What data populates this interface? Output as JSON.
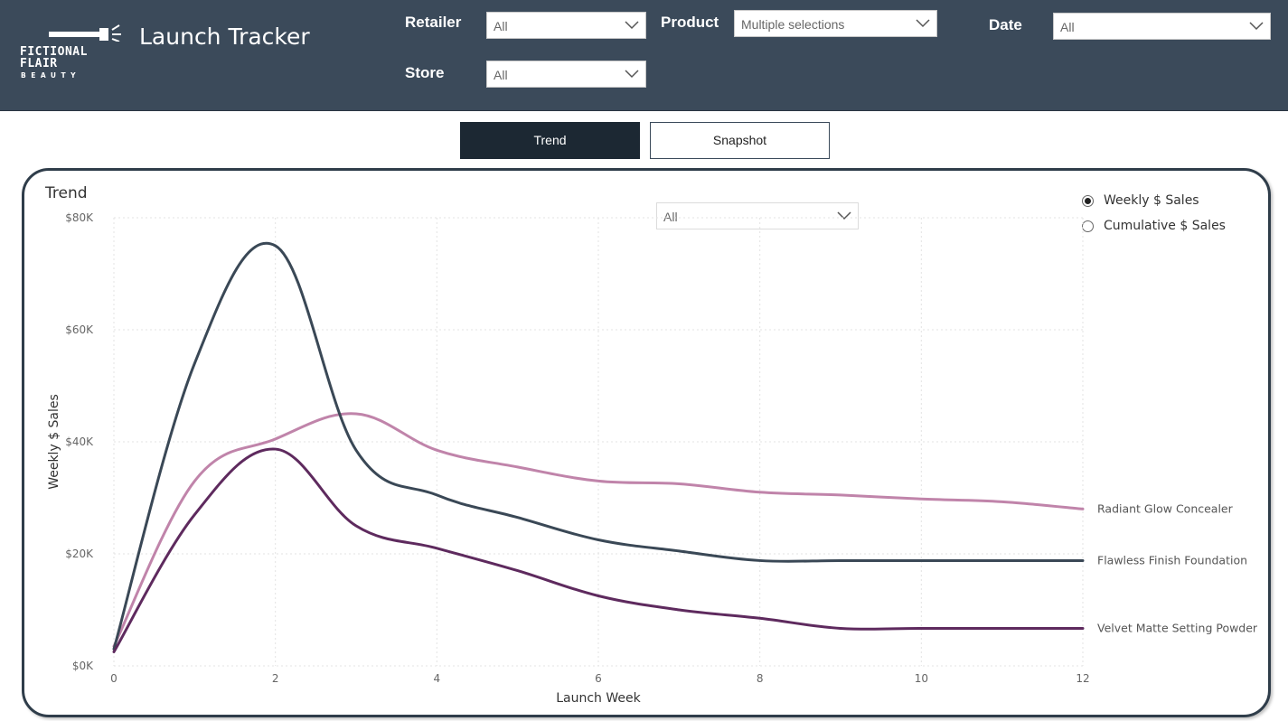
{
  "brand": {
    "line1": "FICTIONAL",
    "line2": "FLAIR",
    "line3": "BEAUTY"
  },
  "header": {
    "title": "Launch Tracker"
  },
  "filters": {
    "retailer": {
      "label": "Retailer",
      "value": "All"
    },
    "product": {
      "label": "Product",
      "value": "Multiple selections"
    },
    "date": {
      "label": "Date",
      "value": "All"
    },
    "store": {
      "label": "Store",
      "value": "All"
    }
  },
  "tabs": {
    "trend": "Trend",
    "snapshot": "Snapshot"
  },
  "card": {
    "title": "Trend",
    "dropdown": "All",
    "radios": [
      {
        "label": "Weekly $ Sales",
        "selected": true
      },
      {
        "label": "Cumulative $ Sales",
        "selected": false
      }
    ]
  },
  "chart_data": {
    "type": "line",
    "xlabel": "Launch Week",
    "ylabel": "Weekly $ Sales",
    "x": [
      0,
      1,
      2,
      3,
      4,
      5,
      6,
      7,
      8,
      9,
      10,
      11,
      12
    ],
    "xticks": [
      0,
      2,
      4,
      6,
      8,
      10,
      12
    ],
    "yticks": [
      0,
      20000,
      40000,
      60000,
      80000
    ],
    "ytick_labels": [
      "$0K",
      "$20K",
      "$40K",
      "$60K",
      "$80K"
    ],
    "xlim": [
      0,
      12
    ],
    "ylim": [
      0,
      80000
    ],
    "grid": true,
    "series": [
      {
        "name": "Radiant Glow Concealer",
        "color": "#c084aa",
        "values": [
          3500,
          33000,
          40500,
          45000,
          38500,
          35500,
          33000,
          32500,
          31000,
          30500,
          29800,
          29300,
          28000
        ]
      },
      {
        "name": "Flawless Finish Foundation",
        "color": "#3a4856",
        "values": [
          3000,
          54000,
          75000,
          38500,
          30500,
          26500,
          22500,
          20500,
          18800,
          18800,
          18800,
          18800,
          18800
        ]
      },
      {
        "name": "Velvet Matte Setting Powder",
        "color": "#5e2a5e",
        "values": [
          2500,
          27000,
          38700,
          25000,
          21000,
          17000,
          12500,
          10000,
          8500,
          6700,
          6700,
          6700,
          6700
        ]
      }
    ]
  }
}
